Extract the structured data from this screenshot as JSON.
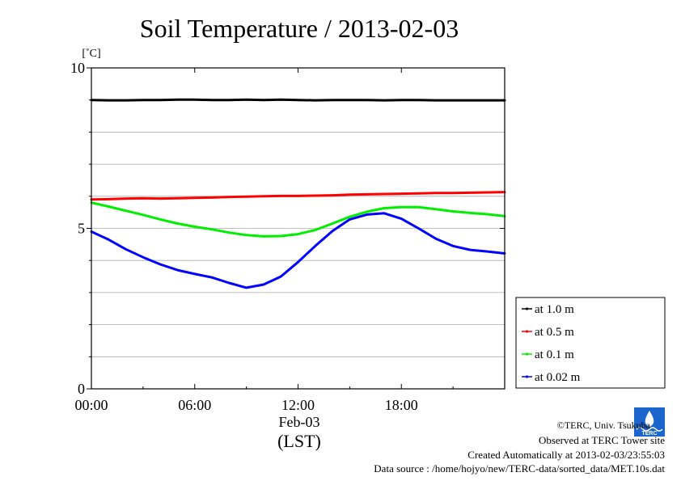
{
  "chart_data": {
    "type": "line",
    "title": "Soil Temperature / 2013-02-03",
    "ylabel": "[˚C]",
    "xlabel": "(LST)",
    "date_label": "Feb-03",
    "ylim": [
      0,
      10
    ],
    "xlim_hours": [
      0,
      24
    ],
    "y_ticks": [
      "0",
      "5",
      "10"
    ],
    "x_ticks": [
      {
        "hour": 0,
        "label": "00:00"
      },
      {
        "hour": 6,
        "label": "06:00"
      },
      {
        "hour": 12,
        "label": "12:00"
      },
      {
        "hour": 18,
        "label": "18:00"
      }
    ],
    "grid": true,
    "legend_position": "right",
    "series": [
      {
        "name": "at 1.0 m",
        "color": "#000000",
        "x": [
          0,
          1,
          2,
          3,
          4,
          5,
          6,
          7,
          8,
          9,
          10,
          11,
          12,
          13,
          14,
          15,
          16,
          17,
          18,
          19,
          20,
          21,
          22,
          23,
          24
        ],
        "y": [
          9.0,
          8.99,
          8.99,
          9.0,
          9.0,
          9.01,
          9.01,
          9.0,
          9.0,
          9.01,
          9.0,
          9.01,
          9.0,
          8.99,
          9.0,
          9.0,
          9.0,
          8.99,
          9.0,
          9.0,
          8.99,
          8.99,
          8.99,
          8.99,
          8.99
        ]
      },
      {
        "name": "at 0.5 m",
        "color": "#ff0000",
        "x": [
          0,
          1,
          2,
          3,
          4,
          5,
          6,
          7,
          8,
          9,
          10,
          11,
          12,
          13,
          14,
          15,
          16,
          17,
          18,
          19,
          20,
          21,
          22,
          23,
          24
        ],
        "y": [
          5.9,
          5.91,
          5.93,
          5.94,
          5.93,
          5.94,
          5.95,
          5.96,
          5.98,
          5.99,
          6.0,
          6.01,
          6.01,
          6.02,
          6.03,
          6.05,
          6.06,
          6.07,
          6.08,
          6.09,
          6.1,
          6.1,
          6.11,
          6.12,
          6.13
        ]
      },
      {
        "name": "at 0.1 m",
        "color": "#00ee00",
        "x": [
          0,
          1,
          2,
          3,
          4,
          5,
          6,
          7,
          8,
          9,
          10,
          11,
          12,
          13,
          14,
          15,
          16,
          17,
          18,
          19,
          20,
          21,
          22,
          23,
          24
        ],
        "y": [
          5.8,
          5.68,
          5.55,
          5.42,
          5.28,
          5.15,
          5.05,
          4.97,
          4.87,
          4.79,
          4.75,
          4.76,
          4.82,
          4.95,
          5.15,
          5.36,
          5.52,
          5.63,
          5.66,
          5.66,
          5.6,
          5.53,
          5.48,
          5.44,
          5.38
        ]
      },
      {
        "name": "at 0.02 m",
        "color": "#0000ff",
        "x": [
          0,
          1,
          2,
          3,
          4,
          5,
          6,
          7,
          8,
          9,
          10,
          11,
          12,
          13,
          14,
          15,
          16,
          17,
          18,
          19,
          20,
          21,
          22,
          23,
          24
        ],
        "y": [
          4.9,
          4.65,
          4.35,
          4.1,
          3.88,
          3.7,
          3.58,
          3.47,
          3.3,
          3.15,
          3.25,
          3.5,
          3.95,
          4.45,
          4.92,
          5.28,
          5.43,
          5.47,
          5.3,
          5.0,
          4.68,
          4.45,
          4.33,
          4.28,
          4.22
        ]
      }
    ]
  },
  "footer": {
    "copyright": "©TERC, Univ. Tsukuba",
    "observed": "Observed at TERC Tower site",
    "created": "Created Automatically at 2013-02-03/23:55:03",
    "source": "Data source : /home/hojyo/new/TERC-data/sorted_data/MET.10s.dat"
  },
  "logo": {
    "text": "TERC",
    "color": "#1a66cc"
  }
}
